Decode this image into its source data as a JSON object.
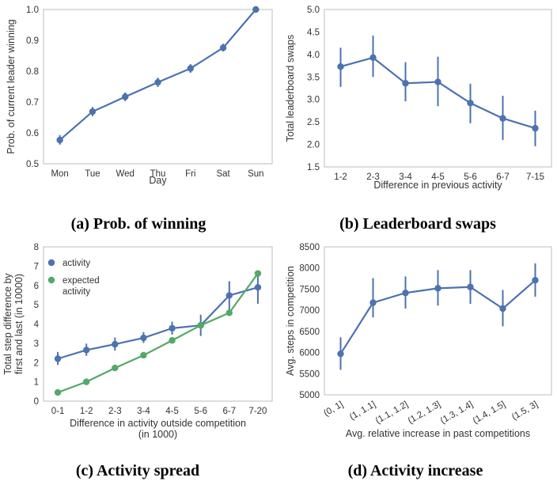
{
  "colors": {
    "blue": "#4c72b0",
    "green": "#55a868",
    "axis": "#bdbdbd",
    "text": "#333333"
  },
  "chart_data": [
    {
      "id": "a",
      "type": "line",
      "caption": "(a) Prob. of winning",
      "xlabel": "Day",
      "ylabel": "Prob. of current leader winning",
      "categories": [
        "Mon",
        "Tue",
        "Wed",
        "Thu",
        "Fri",
        "Sat",
        "Sun"
      ],
      "ylim": [
        0.5,
        1.0
      ],
      "yticks": [
        0.5,
        0.6,
        0.7,
        0.8,
        0.9,
        1.0
      ],
      "ytick_labels": [
        "0.5",
        "0.6",
        "0.7",
        "0.8",
        "0.9",
        "1.0"
      ],
      "series": [
        {
          "name": "",
          "color": "#4c72b0",
          "values": [
            0.577,
            0.669,
            0.717,
            0.764,
            0.809,
            0.876,
            1.0
          ],
          "err_low": [
            0.562,
            0.654,
            0.703,
            0.749,
            0.795,
            0.864,
            1.0
          ],
          "err_high": [
            0.593,
            0.684,
            0.731,
            0.779,
            0.823,
            0.889,
            1.0
          ]
        }
      ]
    },
    {
      "id": "b",
      "type": "line",
      "caption": "(b) Leaderboard swaps",
      "xlabel": "Difference in previous activity",
      "ylabel": "Total leaderboard swaps",
      "categories": [
        "1-2",
        "2-3",
        "3-4",
        "4-5",
        "5-6",
        "6-7",
        "7-15"
      ],
      "ylim": [
        1.5,
        5.0
      ],
      "yticks": [
        1.5,
        2.0,
        2.5,
        3.0,
        3.5,
        4.0,
        4.5,
        5.0
      ],
      "ytick_labels": [
        "1.5",
        "2.0",
        "2.5",
        "3.0",
        "3.5",
        "4.0",
        "4.5",
        "5.0"
      ],
      "series": [
        {
          "name": "",
          "color": "#4c72b0",
          "values": [
            3.73,
            3.93,
            3.36,
            3.39,
            2.92,
            2.58,
            2.36
          ],
          "err_low": [
            3.28,
            3.5,
            2.96,
            2.85,
            2.47,
            2.1,
            1.96
          ],
          "err_high": [
            4.15,
            4.42,
            3.83,
            3.95,
            3.35,
            3.08,
            2.75
          ]
        }
      ]
    },
    {
      "id": "c",
      "type": "line",
      "caption": "(c) Activity spread",
      "xlabel": "Difference in activity outside competition",
      "xlabel2": "(in 1000)",
      "ylabel": "Total step difference by",
      "ylabel2": "first and last (in 10000)",
      "categories": [
        "0-1",
        "1-2",
        "2-3",
        "3-4",
        "4-5",
        "5-6",
        "6-7",
        "7-20"
      ],
      "ylim": [
        0,
        8
      ],
      "yticks": [
        0,
        1,
        2,
        3,
        4,
        5,
        6,
        7,
        8
      ],
      "ytick_labels": [
        "0",
        "1",
        "2",
        "3",
        "4",
        "5",
        "6",
        "7",
        "8"
      ],
      "legend": [
        "activity",
        "expected",
        "activity"
      ],
      "series": [
        {
          "name": "activity",
          "color": "#4c72b0",
          "values": [
            2.2,
            2.65,
            2.95,
            3.28,
            3.78,
            3.93,
            5.48,
            5.9
          ],
          "err_low": [
            1.88,
            2.35,
            2.62,
            3.02,
            3.45,
            3.38,
            4.75,
            5.05
          ],
          "err_high": [
            2.55,
            2.98,
            3.3,
            3.58,
            4.12,
            4.48,
            6.22,
            6.65
          ]
        },
        {
          "name": "expected activity",
          "color": "#55a868",
          "values": [
            0.45,
            1.0,
            1.72,
            2.38,
            3.15,
            3.93,
            4.58,
            6.62
          ],
          "err_low": [
            0.45,
            1.0,
            1.72,
            2.38,
            3.15,
            3.93,
            4.58,
            6.48
          ],
          "err_high": [
            0.45,
            1.0,
            1.72,
            2.38,
            3.15,
            3.93,
            4.58,
            6.78
          ]
        }
      ]
    },
    {
      "id": "d",
      "type": "line",
      "caption": "(d) Activity increase",
      "xlabel": "Avg. relative increase in past competitions",
      "ylabel": "Avg. steps in competition",
      "categories": [
        "(0, 1]",
        "(1, 1.1]",
        "(1.1, 1.2]",
        "(1.2, 1.3]",
        "(1.3, 1.4]",
        "(1.4, 1.5]",
        "(1.5, 3]"
      ],
      "ylim": [
        5000,
        8500
      ],
      "yticks": [
        5000,
        5500,
        6000,
        6500,
        7000,
        7500,
        8000,
        8500
      ],
      "ytick_labels": [
        "5000",
        "5500",
        "6000",
        "6500",
        "7000",
        "7500",
        "8000",
        "8500"
      ],
      "series": [
        {
          "name": "",
          "color": "#4c72b0",
          "values": [
            5970,
            7180,
            7410,
            7520,
            7550,
            7040,
            7710
          ],
          "err_low": [
            5590,
            6830,
            7040,
            7110,
            7150,
            6620,
            7320
          ],
          "err_high": [
            6360,
            7760,
            7800,
            7950,
            7950,
            7480,
            8110
          ]
        }
      ]
    }
  ]
}
